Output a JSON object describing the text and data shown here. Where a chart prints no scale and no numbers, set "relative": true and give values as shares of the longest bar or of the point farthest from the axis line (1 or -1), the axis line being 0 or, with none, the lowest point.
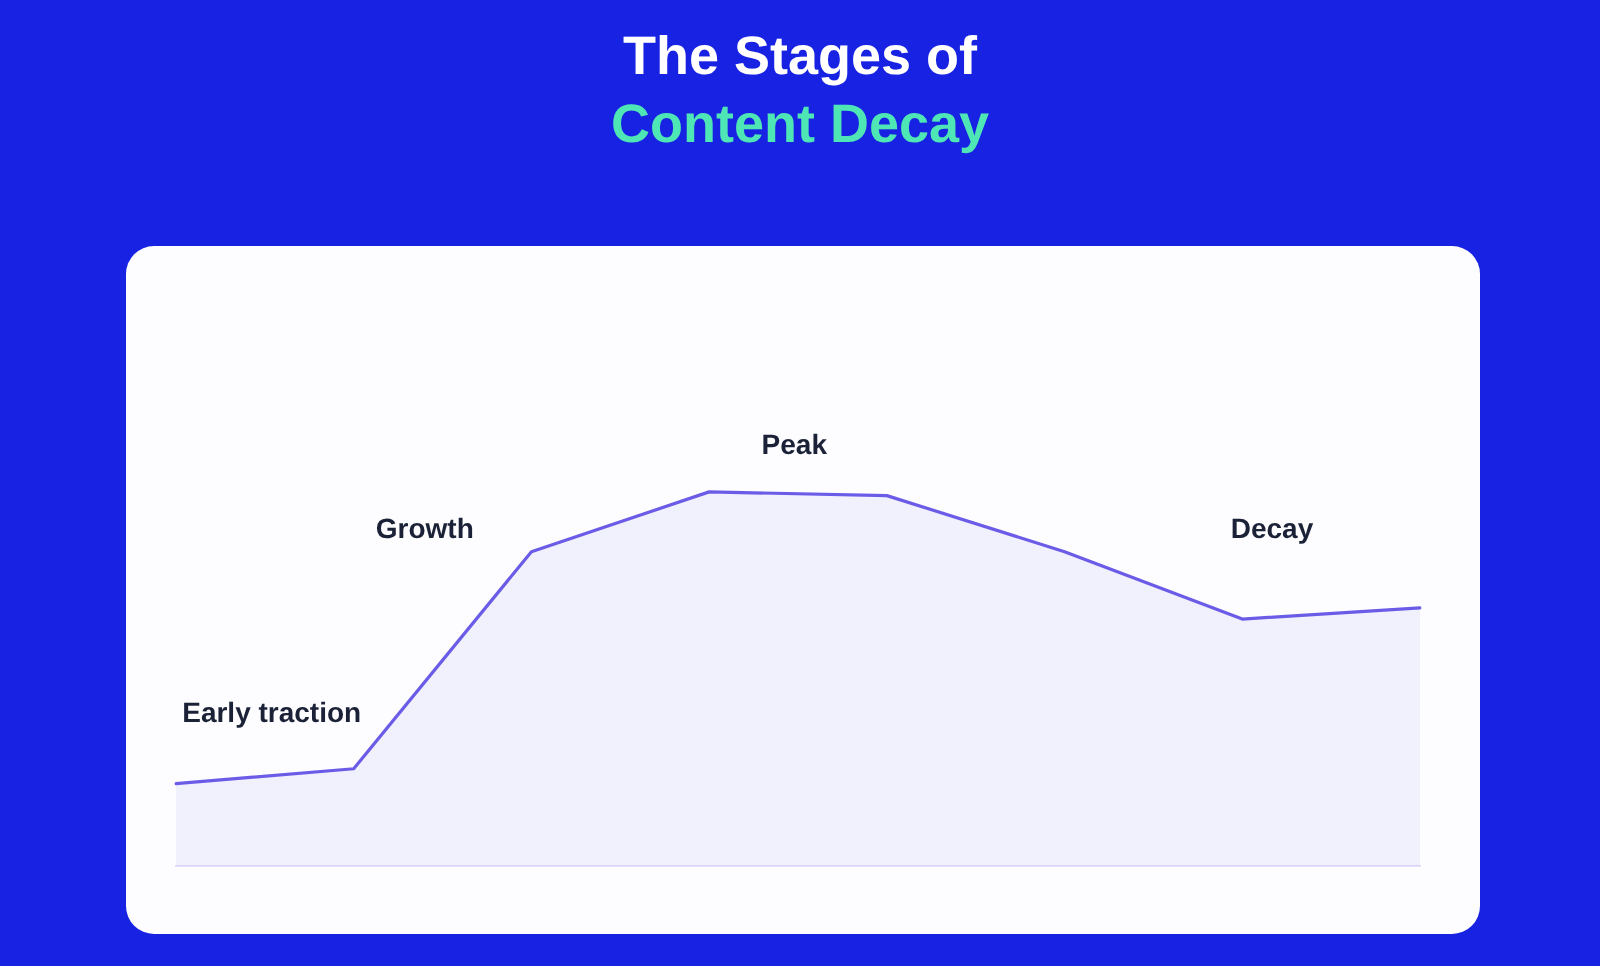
{
  "chart_data": {
    "type": "area",
    "title": "The Stages of",
    "subtitle": "Content Decay",
    "relative": true,
    "categories": [
      null,
      null,
      null,
      null,
      null,
      null,
      null,
      null
    ],
    "series": [
      {
        "color": "#6b5ce7",
        "values": [
          0.22,
          0.26,
          0.84,
          1,
          0.99,
          0.84,
          0.66,
          0.69
        ]
      }
    ],
    "annotations": [
      "Early traction",
      "Growth",
      "Peak",
      "Decay"
    ]
  }
}
